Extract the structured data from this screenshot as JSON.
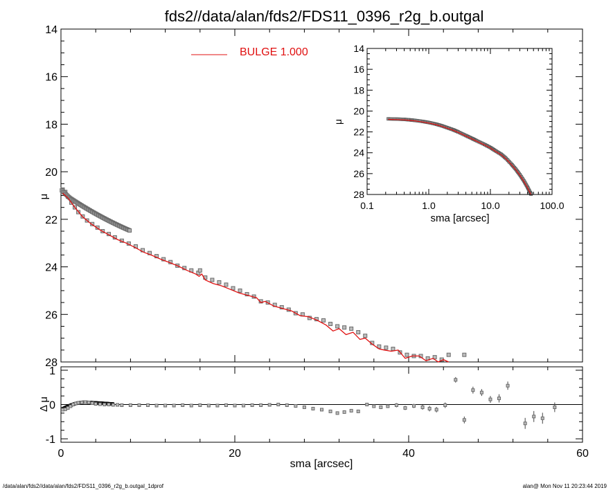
{
  "title": "fds2//data/alan/fds2/FDS11_0396_r2g_b.outgal",
  "footer": {
    "left": "/data/alan/fds2//data/alan/fds2/FDS11_0396_r2g_b.outgal_1dprof",
    "right": "alan@  Mon Nov 11 20:23:44 2019"
  },
  "colors": {
    "model": "#e01010",
    "data": "#6a6a6a",
    "axis": "#000000"
  },
  "chart_data": [
    {
      "id": "main",
      "type": "scatter",
      "title": "fds2//data/alan/fds2/FDS11_0396_r2g_b.outgal",
      "xlabel": "sma [arcsec]",
      "ylabel": "μ",
      "xlim": [
        0,
        60
      ],
      "ylim": [
        28,
        14
      ],
      "yticks": [
        "14",
        "16",
        "18",
        "20",
        "22",
        "24",
        "26",
        "28"
      ],
      "xticks": [
        "0",
        "20",
        "40",
        "60"
      ],
      "legend": {
        "label": "BULGE  1.000",
        "position": "top-center"
      },
      "series": [
        {
          "name": "data",
          "marker": "square",
          "x": [
            0.2,
            0.5,
            0.8,
            1.2,
            1.6,
            2.0,
            2.5,
            3.0,
            3.6,
            4.2,
            4.8,
            5.5,
            6.2,
            7.0,
            7.8,
            8.6,
            9.4,
            10.2,
            11.0,
            11.8,
            12.6,
            13.4,
            14.2,
            15.0,
            15.8,
            16.0,
            16.6,
            17.4,
            18.2,
            19.0,
            19.8,
            20.6,
            21.4,
            22.2,
            23.0,
            23.8,
            24.6,
            25.4,
            26.2,
            27.0,
            27.8,
            28.6,
            29.4,
            30.2,
            31.0,
            31.8,
            32.6,
            33.4,
            34.2,
            35.0,
            35.8,
            36.6,
            37.4,
            38.2,
            39.0,
            39.8,
            40.6,
            41.4,
            42.2,
            43.0,
            43.8,
            44.6,
            46.4
          ],
          "y": [
            20.75,
            20.85,
            21.05,
            21.3,
            21.5,
            21.7,
            21.88,
            22.05,
            22.2,
            22.35,
            22.5,
            22.62,
            22.76,
            22.9,
            23.02,
            23.14,
            23.3,
            23.42,
            23.55,
            23.68,
            23.8,
            23.95,
            24.05,
            24.15,
            24.25,
            24.15,
            24.45,
            24.55,
            24.65,
            24.75,
            24.9,
            25.0,
            25.15,
            25.25,
            25.45,
            25.5,
            25.6,
            25.7,
            25.8,
            25.95,
            26.0,
            26.15,
            26.2,
            26.25,
            26.4,
            26.5,
            26.55,
            26.6,
            26.75,
            26.9,
            27.2,
            27.35,
            27.4,
            27.45,
            27.6,
            27.7,
            27.75,
            27.75,
            27.85,
            27.8,
            27.9,
            27.7,
            27.7
          ]
        },
        {
          "name": "BULGE  1.000",
          "style": "line",
          "x": [
            0.2,
            0.8,
            1.6,
            2.5,
            3.5,
            4.5,
            5.5,
            6.5,
            7.5,
            8.5,
            9.5,
            10.5,
            11.5,
            12.5,
            13.5,
            14.5,
            15.5,
            15.9,
            16.2,
            16.6,
            17.5,
            18.5,
            19.5,
            20.5,
            21.5,
            22.5,
            23.0,
            23.5,
            24.5,
            25.5,
            26.5,
            27.5,
            28.5,
            29.5,
            30.5,
            31.3,
            32.0,
            32.8,
            33.6,
            34.4,
            35.0,
            35.8,
            36.6,
            37.2,
            38.0,
            38.8,
            39.6,
            40.4,
            41.2,
            42.0,
            42.8,
            43.4,
            44.0,
            44.6
          ],
          "y": [
            20.9,
            21.1,
            21.5,
            21.9,
            22.2,
            22.45,
            22.65,
            22.85,
            23.0,
            23.18,
            23.38,
            23.52,
            23.68,
            23.82,
            23.97,
            24.15,
            24.3,
            24.4,
            24.3,
            24.55,
            24.7,
            24.8,
            24.95,
            25.1,
            25.2,
            25.3,
            25.5,
            25.45,
            25.65,
            25.75,
            25.85,
            26.05,
            26.1,
            26.25,
            26.45,
            26.7,
            26.6,
            26.85,
            26.75,
            27.05,
            27.0,
            27.25,
            27.45,
            27.5,
            27.55,
            27.5,
            27.85,
            27.75,
            27.75,
            27.95,
            27.85,
            28.0,
            27.9,
            28.0
          ]
        }
      ]
    },
    {
      "id": "inset",
      "type": "scatter",
      "xscale": "log",
      "xlabel": "sma [arcsec]",
      "ylabel": "μ",
      "xlim": [
        0.1,
        100.0
      ],
      "ylim": [
        28,
        14
      ],
      "yticks": [
        "14",
        "16",
        "18",
        "20",
        "22",
        "24",
        "26",
        "28"
      ],
      "xticks": [
        "0.1",
        "1.0",
        "10.0",
        "100.0"
      ],
      "series": [
        {
          "name": "data",
          "x": [
            0.22,
            0.3,
            0.4,
            0.5,
            0.6,
            0.8,
            1.0,
            1.3,
            1.6,
            2.0,
            2.5,
            3.0,
            4.0,
            5.0,
            6.0,
            8.0,
            10.0,
            12.0,
            15.0,
            18.0,
            22.0,
            26.0,
            30.0,
            35.0,
            40.0,
            44.0,
            46.0
          ],
          "y": [
            20.75,
            20.77,
            20.8,
            20.85,
            20.9,
            21.0,
            21.1,
            21.25,
            21.4,
            21.6,
            21.8,
            22.0,
            22.35,
            22.62,
            22.85,
            23.2,
            23.5,
            23.8,
            24.15,
            24.55,
            25.1,
            25.6,
            26.1,
            26.7,
            27.3,
            27.8,
            28.0
          ]
        }
      ]
    },
    {
      "id": "residual",
      "type": "scatter",
      "xlabel": "sma [arcsec]",
      "ylabel": "Δ μ",
      "xlim": [
        0,
        60
      ],
      "ylim": [
        -1.1,
        1.1
      ],
      "yticks": [
        "1",
        "0",
        "-1"
      ],
      "xticks": [
        "0",
        "20",
        "40",
        "60"
      ],
      "series": [
        {
          "name": "residual",
          "x": [
            0.2,
            0.5,
            0.8,
            1.1,
            1.4,
            1.7,
            2.0,
            2.4,
            2.8,
            3.2,
            3.6,
            4.0,
            4.5,
            5.0,
            5.5,
            6.0,
            6.5,
            7.0,
            8.0,
            9.0,
            10.0,
            11.0,
            12.0,
            13.0,
            14.0,
            15.0,
            16.0,
            17.0,
            18.0,
            19.0,
            20.0,
            21.0,
            22.0,
            23.0,
            24.0,
            25.0,
            26.0,
            27.0,
            28.0,
            29.0,
            30.0,
            31.0,
            31.8,
            32.6,
            33.4,
            34.2,
            35.2,
            36.0,
            36.8,
            37.6,
            38.6,
            39.6,
            40.6,
            41.6,
            42.4,
            43.2,
            44.2,
            45.4,
            46.4,
            47.4,
            48.4,
            49.4,
            50.4,
            51.4,
            53.4,
            54.4,
            55.4,
            56.8
          ],
          "y": [
            -0.15,
            -0.14,
            -0.1,
            -0.05,
            0.0,
            0.03,
            0.05,
            0.06,
            0.07,
            0.06,
            0.04,
            0.02,
            0.01,
            0.0,
            0.0,
            -0.01,
            -0.01,
            -0.02,
            -0.02,
            -0.02,
            -0.02,
            -0.03,
            -0.03,
            -0.03,
            -0.02,
            -0.03,
            -0.02,
            -0.03,
            -0.03,
            -0.02,
            -0.03,
            -0.03,
            -0.02,
            -0.02,
            -0.01,
            0.0,
            -0.02,
            -0.04,
            -0.08,
            -0.12,
            -0.15,
            -0.2,
            -0.25,
            -0.22,
            -0.18,
            -0.2,
            0.0,
            -0.05,
            -0.08,
            -0.05,
            -0.02,
            -0.1,
            -0.04,
            -0.08,
            -0.12,
            -0.15,
            -0.02,
            0.72,
            -0.45,
            0.42,
            0.35,
            0.15,
            0.18,
            0.55,
            -0.55,
            -0.35,
            -0.4,
            -0.08
          ],
          "err": [
            0.02,
            0.02,
            0.02,
            0.02,
            0.02,
            0.02,
            0.02,
            0.02,
            0.02,
            0.02,
            0.02,
            0.02,
            0.02,
            0.02,
            0.02,
            0.02,
            0.02,
            0.02,
            0.02,
            0.02,
            0.02,
            0.02,
            0.02,
            0.02,
            0.02,
            0.02,
            0.02,
            0.02,
            0.02,
            0.02,
            0.02,
            0.02,
            0.02,
            0.02,
            0.02,
            0.02,
            0.03,
            0.03,
            0.03,
            0.03,
            0.03,
            0.03,
            0.04,
            0.04,
            0.04,
            0.04,
            0.05,
            0.05,
            0.05,
            0.05,
            0.06,
            0.06,
            0.06,
            0.07,
            0.08,
            0.08,
            0.08,
            0.08,
            0.1,
            0.1,
            0.1,
            0.1,
            0.12,
            0.12,
            0.16,
            0.16,
            0.16,
            0.14
          ]
        }
      ]
    }
  ]
}
